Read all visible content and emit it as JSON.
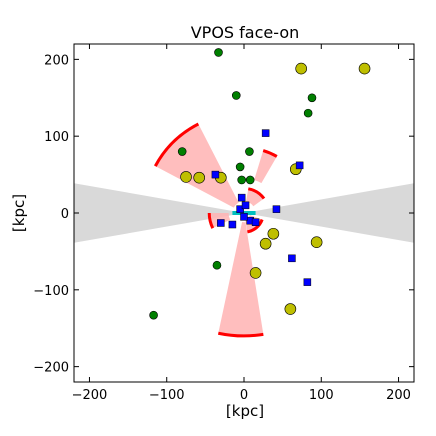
{
  "chart_data": {
    "type": "scatter",
    "title": "VPOS face-on",
    "xlabel": "[kpc]",
    "ylabel": "[kpc]",
    "xlim": [
      -220,
      220
    ],
    "ylim": [
      -220,
      220
    ],
    "xticks": [
      -200,
      -100,
      0,
      100,
      200
    ],
    "yticks": [
      -200,
      -100,
      0,
      100,
      200
    ],
    "xtick_labels": [
      "−200",
      "−100",
      "0",
      "100",
      "200"
    ],
    "ytick_labels": [
      "−200",
      "−100",
      "0",
      "100",
      "200"
    ],
    "grid": false,
    "colors": {
      "green": "#007f00",
      "yellow": "#bfbf00",
      "blue": "#0000ff",
      "red": "#ff0000",
      "pink": "#ffb3b3",
      "gray": "#d9d9d9",
      "cyan": "#00bfbf"
    },
    "zone_of_avoidance": {
      "half_angle_deg": 10,
      "color": "gray"
    },
    "series": [
      {
        "marker": "circle",
        "color": "green",
        "points": [
          [
            -33,
            209
          ],
          [
            -10,
            153
          ],
          [
            88,
            150
          ],
          [
            83,
            130
          ],
          [
            -80,
            80
          ],
          [
            7,
            80
          ],
          [
            -5,
            60
          ],
          [
            -3,
            43
          ],
          [
            8,
            43
          ],
          [
            -35,
            -68
          ],
          [
            -117,
            -133
          ]
        ]
      },
      {
        "marker": "circle-large",
        "color": "yellow",
        "points": [
          [
            74,
            188
          ],
          [
            156,
            188
          ],
          [
            -58,
            46
          ],
          [
            -30,
            46
          ],
          [
            67,
            57
          ],
          [
            28,
            -40
          ],
          [
            38,
            -27
          ],
          [
            94,
            -38
          ],
          [
            -75,
            47
          ],
          [
            15,
            -78
          ],
          [
            60,
            -125
          ]
        ]
      },
      {
        "marker": "square",
        "color": "blue",
        "points": [
          [
            28,
            104
          ],
          [
            72,
            62
          ],
          [
            -37,
            50
          ],
          [
            -3,
            20
          ],
          [
            -5,
            5
          ],
          [
            2,
            10
          ],
          [
            -15,
            -15
          ],
          [
            -30,
            -13
          ],
          [
            8,
            -10
          ],
          [
            15,
            -12
          ],
          [
            42,
            5
          ],
          [
            62,
            -59
          ],
          [
            82,
            -90
          ],
          [
            0,
            -5
          ]
        ]
      }
    ],
    "cones": [
      {
        "inner": 15,
        "outer": 130,
        "a1": 117,
        "a2": 152
      },
      {
        "inner": 45,
        "outer": 85,
        "a1": 60,
        "a2": 73
      },
      {
        "inner": 12,
        "outer": 160,
        "a1": 258,
        "a2": 279
      },
      {
        "inner": 15,
        "outer": 32,
        "a1": 36,
        "a2": 80
      },
      {
        "inner": 20,
        "outer": 45,
        "a1": 180,
        "a2": 206
      },
      {
        "inner": 8,
        "outer": 25,
        "a1": 280,
        "a2": 340
      }
    ],
    "cyan_segment": {
      "x": [
        -15,
        15
      ],
      "y": [
        0,
        0
      ]
    }
  }
}
